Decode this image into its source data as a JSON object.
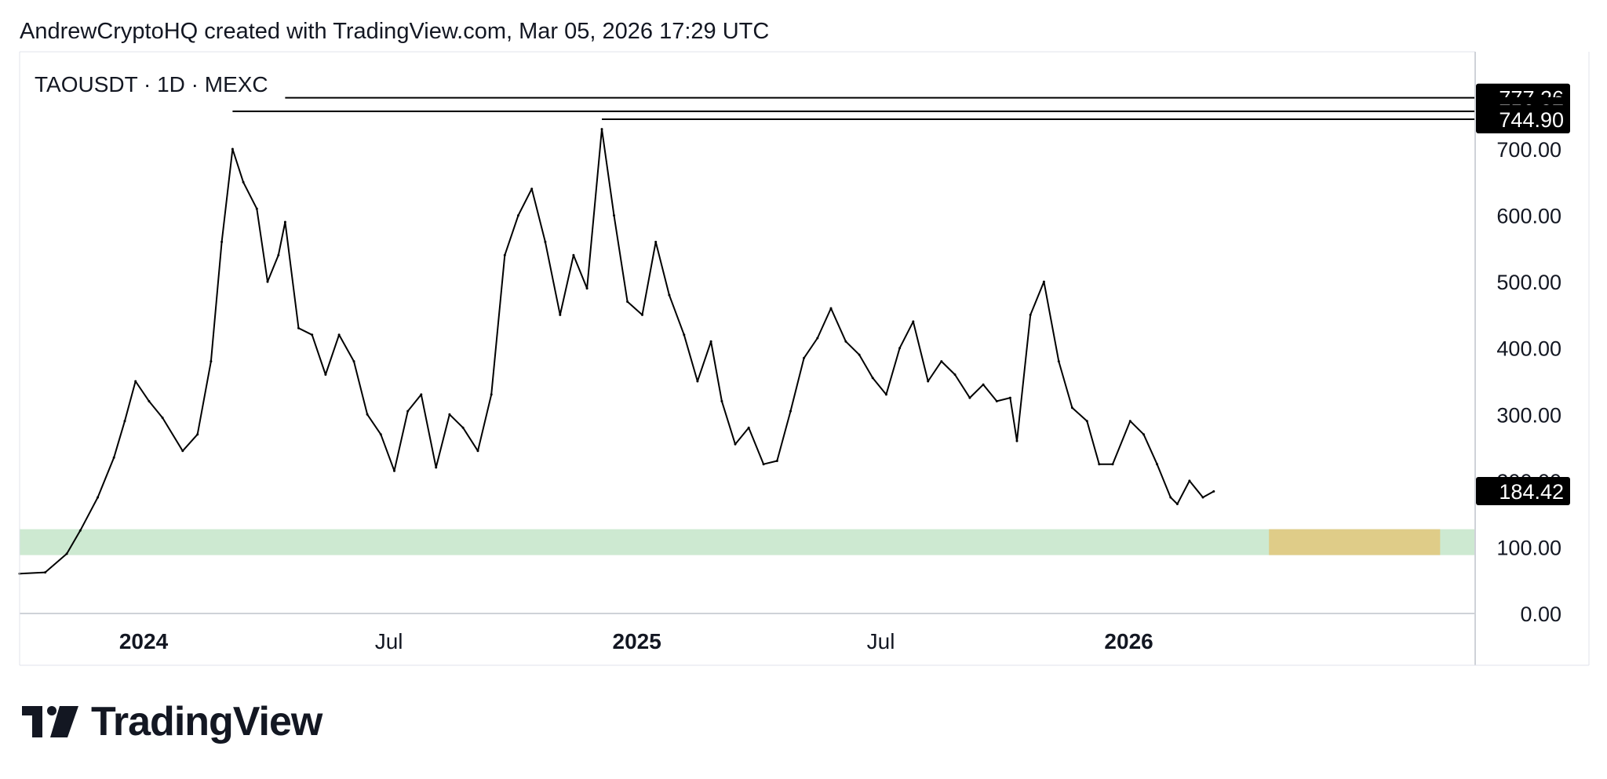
{
  "header": {
    "attribution": "AndrewCryptoHQ created with TradingView.com, Mar 05, 2026 17:29 UTC"
  },
  "brand": {
    "name": "TradingView",
    "logo_icon": "tradingview-logo-icon"
  },
  "colors": {
    "line": "#000000",
    "zone_green": "#cde9d1",
    "zone_yellow": "#dfcc88",
    "axis": "#cfd2d8",
    "label_bg": "#000000",
    "label_text": "#ffffff"
  },
  "chart_data": {
    "type": "line",
    "title": "TAOUSDT · 1D · MEXC",
    "symbol": "TAOUSDT",
    "interval": "1D",
    "exchange": "MEXC",
    "xlabel": "",
    "ylabel": "",
    "ylim": [
      0,
      780
    ],
    "grid": false,
    "x_ticks": [
      "2024",
      "Jul",
      "2025",
      "Jul",
      "2026"
    ],
    "y_ticks": [
      "0.00",
      "100.00",
      "200.00",
      "300.00",
      "400.00",
      "500.00",
      "600.00",
      "700.00"
    ],
    "price_labels": [
      "777.26",
      "756.87",
      "744.90",
      "184.42"
    ],
    "last_price": 184.42,
    "horizontal_lines": [
      {
        "value": 777.26,
        "from": "2024-04-15"
      },
      {
        "value": 756.87,
        "from": "2024-03-07"
      },
      {
        "value": 744.9,
        "from": "2024-12-06"
      }
    ],
    "zones": [
      {
        "from": "2023-10-01",
        "to": "2026-09-15",
        "low": 88,
        "high": 127,
        "color": "green"
      },
      {
        "from": "2026-04-15",
        "to": "2026-08-20",
        "low": 88,
        "high": 127,
        "color": "yellow"
      }
    ],
    "series": [
      {
        "values": [
          [
            "2023-10-01",
            60
          ],
          [
            "2023-10-20",
            62
          ],
          [
            "2023-11-05",
            90
          ],
          [
            "2023-11-15",
            125
          ],
          [
            "2023-11-28",
            175
          ],
          [
            "2023-12-10",
            235
          ],
          [
            "2023-12-18",
            290
          ],
          [
            "2023-12-26",
            350
          ],
          [
            "2024-01-05",
            320
          ],
          [
            "2024-01-15",
            295
          ],
          [
            "2024-01-30",
            245
          ],
          [
            "2024-02-10",
            270
          ],
          [
            "2024-02-20",
            380
          ],
          [
            "2024-02-28",
            560
          ],
          [
            "2024-03-07",
            700
          ],
          [
            "2024-03-15",
            650
          ],
          [
            "2024-03-25",
            610
          ],
          [
            "2024-04-02",
            500
          ],
          [
            "2024-04-10",
            540
          ],
          [
            "2024-04-15",
            590
          ],
          [
            "2024-04-25",
            430
          ],
          [
            "2024-05-05",
            420
          ],
          [
            "2024-05-15",
            360
          ],
          [
            "2024-05-25",
            420
          ],
          [
            "2024-06-05",
            380
          ],
          [
            "2024-06-15",
            300
          ],
          [
            "2024-06-25",
            270
          ],
          [
            "2024-07-05",
            215
          ],
          [
            "2024-07-15",
            305
          ],
          [
            "2024-07-25",
            330
          ],
          [
            "2024-08-05",
            220
          ],
          [
            "2024-08-15",
            300
          ],
          [
            "2024-08-25",
            280
          ],
          [
            "2024-09-05",
            245
          ],
          [
            "2024-09-15",
            330
          ],
          [
            "2024-09-25",
            540
          ],
          [
            "2024-10-05",
            600
          ],
          [
            "2024-10-15",
            640
          ],
          [
            "2024-10-25",
            560
          ],
          [
            "2024-11-05",
            450
          ],
          [
            "2024-11-15",
            540
          ],
          [
            "2024-11-25",
            490
          ],
          [
            "2024-12-06",
            730
          ],
          [
            "2024-12-15",
            600
          ],
          [
            "2024-12-25",
            470
          ],
          [
            "2025-01-05",
            450
          ],
          [
            "2025-01-15",
            560
          ],
          [
            "2025-01-25",
            480
          ],
          [
            "2025-02-05",
            420
          ],
          [
            "2025-02-15",
            350
          ],
          [
            "2025-02-25",
            410
          ],
          [
            "2025-03-05",
            320
          ],
          [
            "2025-03-15",
            255
          ],
          [
            "2025-03-25",
            280
          ],
          [
            "2025-04-05",
            225
          ],
          [
            "2025-04-15",
            230
          ],
          [
            "2025-04-25",
            305
          ],
          [
            "2025-05-05",
            385
          ],
          [
            "2025-05-15",
            415
          ],
          [
            "2025-05-25",
            460
          ],
          [
            "2025-06-05",
            410
          ],
          [
            "2025-06-15",
            390
          ],
          [
            "2025-06-25",
            355
          ],
          [
            "2025-07-05",
            330
          ],
          [
            "2025-07-15",
            400
          ],
          [
            "2025-07-25",
            440
          ],
          [
            "2025-08-05",
            350
          ],
          [
            "2025-08-15",
            380
          ],
          [
            "2025-08-25",
            360
          ],
          [
            "2025-09-05",
            325
          ],
          [
            "2025-09-15",
            345
          ],
          [
            "2025-09-25",
            320
          ],
          [
            "2025-10-05",
            325
          ],
          [
            "2025-10-10",
            260
          ],
          [
            "2025-10-20",
            450
          ],
          [
            "2025-10-30",
            500
          ],
          [
            "2025-11-10",
            380
          ],
          [
            "2025-11-20",
            310
          ],
          [
            "2025-12-01",
            290
          ],
          [
            "2025-12-10",
            225
          ],
          [
            "2025-12-20",
            225
          ],
          [
            "2026-01-02",
            290
          ],
          [
            "2026-01-12",
            270
          ],
          [
            "2026-01-22",
            225
          ],
          [
            "2026-02-01",
            175
          ],
          [
            "2026-02-06",
            165
          ],
          [
            "2026-02-15",
            200
          ],
          [
            "2026-02-25",
            175
          ],
          [
            "2026-03-05",
            184
          ]
        ]
      }
    ]
  }
}
